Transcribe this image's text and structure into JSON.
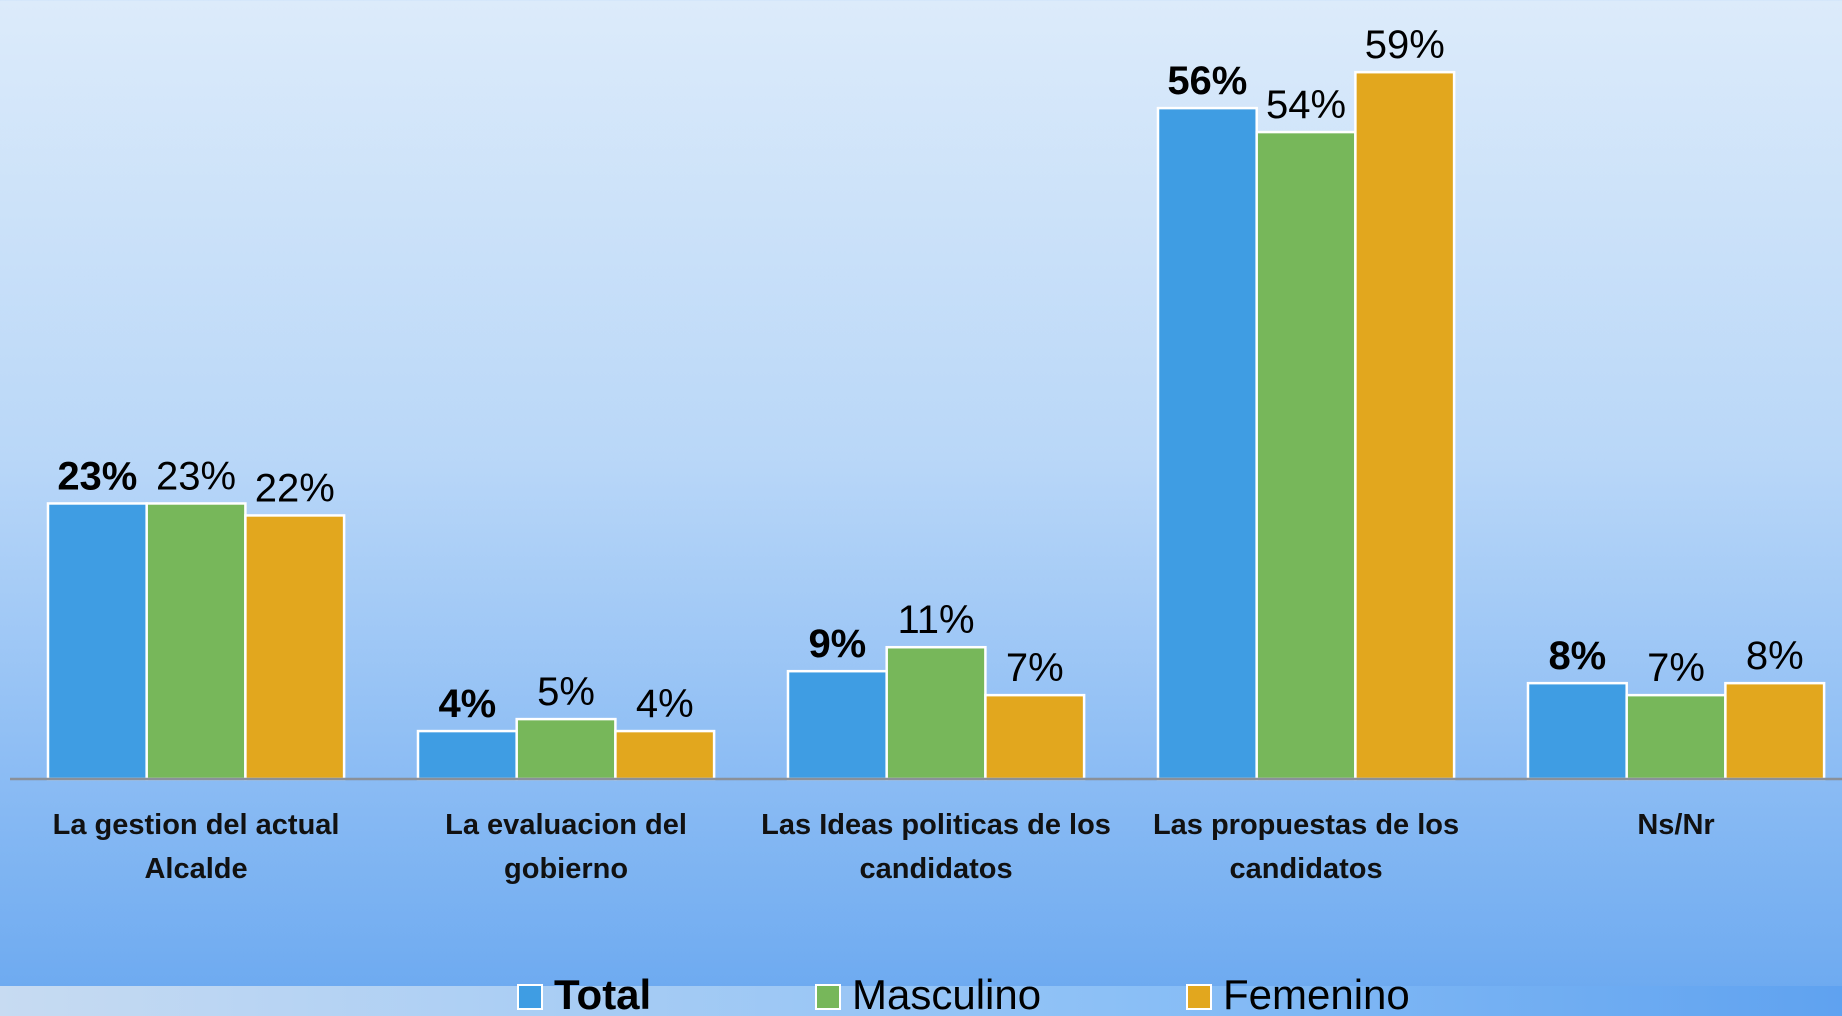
{
  "chart_data": {
    "type": "bar",
    "categories": [
      "La gestion del actual Alcalde",
      "La evaluacion del gobierno",
      "Las Ideas politicas de los candidatos",
      "Las propuestas de los candidatos",
      "Ns/Nr"
    ],
    "series": [
      {
        "name": "Total",
        "color": "#3f9de3",
        "bold": true,
        "values": [
          23,
          4,
          9,
          56,
          8
        ],
        "value_labels": [
          "23%",
          "4%",
          "9%",
          "56%",
          "8%"
        ]
      },
      {
        "name": "Masculino",
        "color": "#77b75a",
        "bold": false,
        "values": [
          23,
          5,
          11,
          54,
          7
        ],
        "value_labels": [
          "23%",
          "5%",
          "11%",
          "54%",
          "7%"
        ]
      },
      {
        "name": "Femenino",
        "color": "#e2a71e",
        "bold": false,
        "values": [
          22,
          4,
          7,
          59,
          8
        ],
        "value_labels": [
          "22%",
          "4%",
          "7%",
          "59%",
          "8%"
        ]
      }
    ],
    "legend": "bottom"
  }
}
